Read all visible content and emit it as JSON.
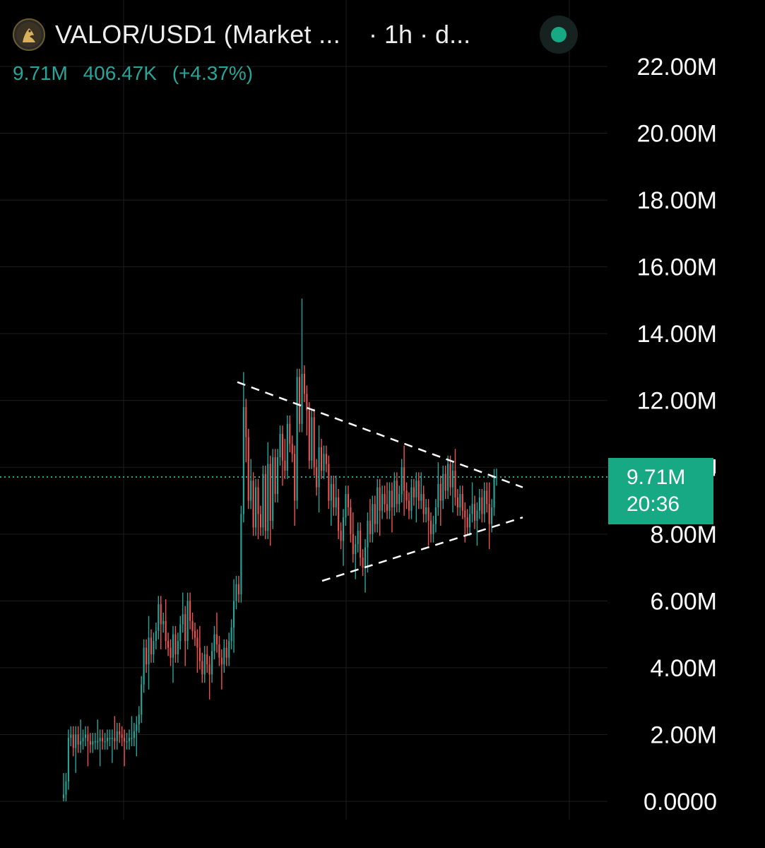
{
  "header": {
    "symbol_title": "VALOR/USD1 (Market ...",
    "timeframe": "· 1h · d...",
    "logo_icon": "eagle-logo-icon",
    "status_icon": "market-open-dot-icon",
    "status_color": "#17a884"
  },
  "stats": {
    "last_value": "9.71M",
    "change_abs": "406.47K",
    "change_pct": "(+4.37%)",
    "color": "#26a69a"
  },
  "price_tag": {
    "value": "9.71M",
    "countdown": "20:36",
    "color": "#17a884"
  },
  "colors": {
    "up": "#26a69a",
    "down": "#ef5350",
    "background": "#000000",
    "grid": "#1c1c1c",
    "trendline": "#ffffff",
    "current_price_line": "#26a69a"
  },
  "chart_data": {
    "type": "candlestick",
    "y_axis": {
      "position": "right",
      "ticks": [
        "22.00M",
        "20.00M",
        "18.00M",
        "16.00M",
        "14.00M",
        "12.00M",
        "10.00M",
        "8.00M",
        "6.00M",
        "4.00M",
        "2.00M",
        "0.0000"
      ],
      "tick_values": [
        22,
        20,
        18,
        16,
        14,
        12,
        10,
        8,
        6,
        4,
        2,
        0
      ],
      "unit": "M",
      "ylim": [
        0,
        22
      ]
    },
    "grid": true,
    "current_price": 9.71,
    "series_close": [
      0.2,
      0.6,
      1.9,
      2.0,
      1.6,
      2.0,
      1.7,
      1.8,
      1.9,
      2.0,
      1.8,
      1.7,
      1.8,
      1.8,
      1.8,
      1.9,
      1.8,
      1.8,
      1.9,
      1.9,
      1.9,
      1.8,
      2.1,
      2.0,
      1.9,
      1.8,
      1.8,
      1.9,
      1.9,
      2.1,
      2.3,
      2.6,
      3.5,
      4.6,
      4.1,
      4.9,
      4.4,
      4.8,
      5.1,
      5.9,
      5.3,
      5.4,
      4.8,
      4.6,
      4.3,
      5.0,
      4.4,
      4.8,
      5.3,
      5.6,
      4.8,
      6.0,
      5.4,
      5.1,
      4.9,
      4.6,
      4.2,
      3.8,
      4.4,
      4.1,
      3.8,
      4.5,
      5.0,
      4.7,
      4.3,
      4.1,
      4.6,
      4.3,
      4.8,
      5.2,
      6.0,
      6.5,
      6.2,
      8.6,
      11.8,
      10.9,
      9.0,
      9.6,
      8.2,
      9.4,
      8.6,
      8.2,
      9.8,
      8.1,
      10.1,
      8.4,
      10.3,
      9.2,
      10.3,
      11.0,
      10.2,
      9.9,
      11.3,
      10.7,
      10.4,
      9.0,
      12.7,
      11.3,
      12.8,
      12.2,
      11.7,
      10.2,
      11.5,
      10.0,
      9.4,
      10.6,
      9.9,
      10.4,
      10.1,
      9.0,
      9.5,
      8.8,
      9.1,
      8.1,
      7.8,
      8.5,
      9.2,
      8.8,
      8.0,
      7.4,
      7.7,
      8.1,
      7.3,
      7.0,
      7.6,
      8.4,
      8.0,
      8.9,
      8.3,
      9.4,
      8.7,
      9.2,
      8.9,
      8.7,
      9.3,
      8.8,
      9.6,
      8.9,
      9.2,
      10.0,
      9.3,
      9.0,
      8.7,
      9.4,
      9.1,
      9.6,
      9.0,
      9.2,
      8.6,
      8.8,
      8.4,
      8.0,
      8.3,
      8.8,
      9.5,
      9.0,
      9.8,
      9.3,
      10.1,
      9.4,
      9.9,
      9.1,
      8.8,
      9.2,
      8.7,
      8.5,
      8.2,
      8.6,
      8.9,
      8.4,
      8.7,
      9.1,
      8.6,
      9.3,
      8.9,
      8.3,
      8.8,
      9.7,
      9.71
    ],
    "annotations": {
      "upper_trendline": [
        [
          336,
          12.55
        ],
        [
          740,
          9.4
        ]
      ],
      "lower_trendline": [
        [
          456,
          6.6
        ],
        [
          740,
          8.5
        ]
      ]
    }
  }
}
